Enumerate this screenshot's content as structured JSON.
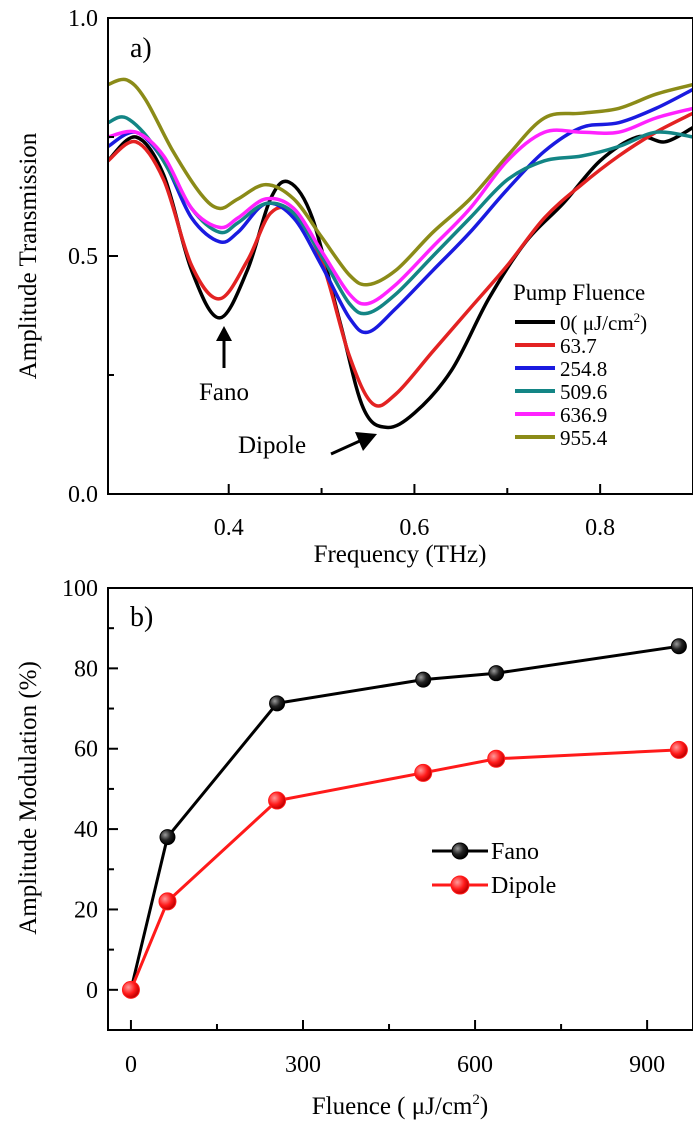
{
  "chart_data": [
    {
      "panel_label": "a)",
      "type": "line",
      "xlabel": "Frequency (THz)",
      "ylabel": "Amplitude Transmission",
      "xlim": [
        0.27,
        0.9
      ],
      "ylim": [
        0.0,
        1.0
      ],
      "xticks": [
        0.4,
        0.6,
        0.8
      ],
      "xtick_labels": [
        "0.4",
        "0.6",
        "0.8"
      ],
      "yticks": [
        0.0,
        0.5,
        1.0
      ],
      "ytick_labels": [
        "0.0",
        "0.5",
        "1.0"
      ],
      "grid": false,
      "legend": {
        "title": "Pump Fluence",
        "placement": "lower-right",
        "unit_prefix": "( μJ/cm",
        "unit_exp": "2",
        "unit_suffix": ")"
      },
      "annotations": [
        {
          "text": "Fano",
          "x": 0.39,
          "y": 0.37
        },
        {
          "text": "Dipole",
          "x": 0.565,
          "y": 0.14
        }
      ],
      "series": [
        {
          "name": "0",
          "color": "#000000",
          "x": [
            0.27,
            0.3,
            0.33,
            0.36,
            0.39,
            0.42,
            0.445,
            0.465,
            0.49,
            0.52,
            0.545,
            0.57,
            0.6,
            0.64,
            0.68,
            0.72,
            0.76,
            0.8,
            0.84,
            0.87,
            0.9
          ],
          "y": [
            0.7,
            0.75,
            0.67,
            0.47,
            0.37,
            0.47,
            0.62,
            0.655,
            0.58,
            0.36,
            0.18,
            0.14,
            0.17,
            0.26,
            0.41,
            0.53,
            0.61,
            0.7,
            0.75,
            0.74,
            0.77
          ]
        },
        {
          "name": "63.7",
          "color": "#e32222",
          "x": [
            0.27,
            0.3,
            0.33,
            0.36,
            0.39,
            0.42,
            0.445,
            0.47,
            0.5,
            0.53,
            0.555,
            0.58,
            0.62,
            0.66,
            0.7,
            0.74,
            0.78,
            0.82,
            0.86,
            0.9
          ],
          "y": [
            0.7,
            0.74,
            0.66,
            0.48,
            0.41,
            0.49,
            0.59,
            0.59,
            0.49,
            0.29,
            0.19,
            0.21,
            0.3,
            0.39,
            0.48,
            0.58,
            0.65,
            0.71,
            0.76,
            0.8
          ]
        },
        {
          "name": "254.8",
          "color": "#1a1ae0",
          "x": [
            0.27,
            0.3,
            0.33,
            0.36,
            0.39,
            0.41,
            0.44,
            0.47,
            0.5,
            0.53,
            0.55,
            0.58,
            0.62,
            0.66,
            0.7,
            0.74,
            0.78,
            0.82,
            0.86,
            0.9
          ],
          "y": [
            0.73,
            0.76,
            0.7,
            0.58,
            0.53,
            0.55,
            0.61,
            0.58,
            0.48,
            0.37,
            0.34,
            0.39,
            0.47,
            0.55,
            0.64,
            0.72,
            0.77,
            0.78,
            0.81,
            0.85
          ]
        },
        {
          "name": "509.6",
          "color": "#138585",
          "x": [
            0.27,
            0.29,
            0.32,
            0.36,
            0.39,
            0.41,
            0.44,
            0.47,
            0.5,
            0.53,
            0.55,
            0.58,
            0.62,
            0.66,
            0.7,
            0.74,
            0.78,
            0.82,
            0.86,
            0.9
          ],
          "y": [
            0.78,
            0.79,
            0.73,
            0.6,
            0.55,
            0.57,
            0.61,
            0.59,
            0.5,
            0.4,
            0.38,
            0.42,
            0.5,
            0.58,
            0.66,
            0.7,
            0.71,
            0.73,
            0.76,
            0.75
          ]
        },
        {
          "name": "636.9",
          "color": "#ff22ff",
          "x": [
            0.27,
            0.3,
            0.33,
            0.36,
            0.39,
            0.41,
            0.44,
            0.47,
            0.5,
            0.53,
            0.55,
            0.58,
            0.62,
            0.66,
            0.7,
            0.74,
            0.78,
            0.82,
            0.86,
            0.9
          ],
          "y": [
            0.75,
            0.76,
            0.71,
            0.6,
            0.56,
            0.58,
            0.62,
            0.6,
            0.51,
            0.42,
            0.4,
            0.44,
            0.52,
            0.6,
            0.7,
            0.76,
            0.76,
            0.76,
            0.79,
            0.81
          ]
        },
        {
          "name": "955.4",
          "color": "#8b8b18",
          "x": [
            0.27,
            0.29,
            0.31,
            0.34,
            0.37,
            0.39,
            0.41,
            0.44,
            0.47,
            0.5,
            0.53,
            0.55,
            0.58,
            0.62,
            0.66,
            0.7,
            0.74,
            0.78,
            0.82,
            0.86,
            0.9
          ],
          "y": [
            0.86,
            0.87,
            0.83,
            0.72,
            0.63,
            0.6,
            0.62,
            0.65,
            0.62,
            0.54,
            0.46,
            0.44,
            0.47,
            0.55,
            0.62,
            0.71,
            0.79,
            0.8,
            0.81,
            0.84,
            0.86
          ]
        }
      ]
    },
    {
      "panel_label": "b)",
      "type": "line",
      "xlabel_prefix": "Fluence ( μJ/cm",
      "xlabel_exp": "2",
      "xlabel_suffix": ")",
      "ylabel": "Amplitude Modulation (%)",
      "xlim": [
        -40,
        980
      ],
      "ylim": [
        -10,
        100
      ],
      "xticks": [
        0,
        300,
        600,
        900
      ],
      "xtick_labels": [
        "0",
        "300",
        "600",
        "900"
      ],
      "yticks": [
        0,
        20,
        40,
        60,
        80,
        100
      ],
      "ytick_labels": [
        "0",
        "20",
        "40",
        "60",
        "80",
        "100"
      ],
      "grid": false,
      "legend": {
        "placement": "center-right"
      },
      "series": [
        {
          "name": "Fano",
          "color": "#000000",
          "x": [
            0,
            63.7,
            254.8,
            509.6,
            636.9,
            955.4
          ],
          "y": [
            0,
            38,
            71.3,
            77.2,
            78.8,
            85.5
          ]
        },
        {
          "name": "Dipole",
          "color": "#ff1a1a",
          "x": [
            0,
            63.7,
            254.8,
            509.6,
            636.9,
            955.4
          ],
          "y": [
            0,
            22,
            47.1,
            54,
            57.5,
            59.7
          ]
        }
      ]
    }
  ]
}
